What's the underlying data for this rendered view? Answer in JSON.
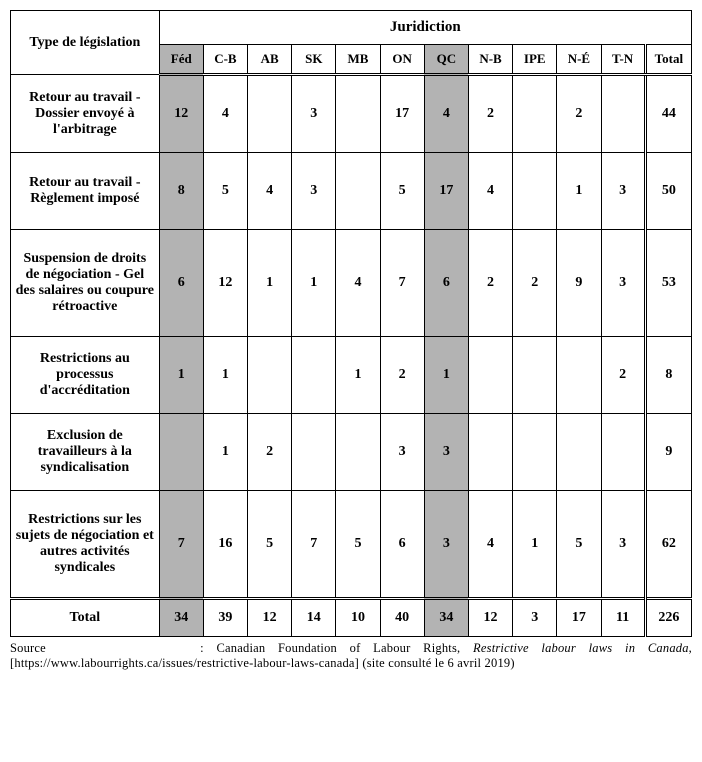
{
  "header": {
    "rowLabel": "Type de législation",
    "groupLabel": "Juridiction"
  },
  "columns": [
    "Féd",
    "C-B",
    "AB",
    "SK",
    "MB",
    "ON",
    "QC",
    "N-B",
    "IPE",
    "N-É",
    "T-N",
    "Total"
  ],
  "shadedColumns": [
    0,
    6
  ],
  "doubleLeftColumns": [
    11
  ],
  "rows": [
    {
      "label": "Retour au travail - Dossier envoyé à l'arbitrage",
      "values": [
        "12",
        "4",
        "",
        "3",
        "",
        "17",
        "4",
        "2",
        "",
        "2",
        "",
        "44"
      ],
      "tall": false
    },
    {
      "label": "Retour au travail - Règlement imposé",
      "values": [
        "8",
        "5",
        "4",
        "3",
        "",
        "5",
        "17",
        "4",
        "",
        "1",
        "3",
        "50"
      ],
      "tall": false
    },
    {
      "label": "Suspension de droits de négociation - Gel des salaires ou coupure rétroactive",
      "values": [
        "6",
        "12",
        "1",
        "1",
        "4",
        "7",
        "6",
        "2",
        "2",
        "9",
        "3",
        "53"
      ],
      "tall": true
    },
    {
      "label": "Restrictions au processus d'accréditation",
      "values": [
        "1",
        "1",
        "",
        "",
        "1",
        "2",
        "1",
        "",
        "",
        "",
        "2",
        "8"
      ],
      "tall": false
    },
    {
      "label": "Exclusion de travailleurs à la syndicalisation",
      "values": [
        "",
        "1",
        "2",
        "",
        "",
        "3",
        "3",
        "",
        "",
        "",
        "",
        "9"
      ],
      "tall": false
    },
    {
      "label": "Restrictions sur les sujets de négociation et autres activités syndicales",
      "values": [
        "7",
        "16",
        "5",
        "7",
        "5",
        "6",
        "3",
        "4",
        "1",
        "5",
        "3",
        "62"
      ],
      "tall": true
    }
  ],
  "totalRow": {
    "label": "Total",
    "values": [
      "34",
      "39",
      "12",
      "14",
      "10",
      "40",
      "34",
      "12",
      "3",
      "17",
      "11",
      "226"
    ]
  },
  "source": {
    "prefix": "Source : Canadian Foundation of Labour Rights, ",
    "italic": "Restrictive labour laws in Canada",
    "suffix": ", [https://www.labourrights.ca/issues/restrictive-labour-laws-canada] (site consulté le 6 avril 2019)"
  },
  "styling": {
    "tableWidth": 682,
    "rowLabelColWidth": 148,
    "dataColWidth": 44,
    "cellHeight": 68,
    "tallCellHeight": 98,
    "shadedColor": "#b3b3b3",
    "borderColor": "#000000",
    "background": "#ffffff",
    "fontFamily": "Times New Roman",
    "baseFontSize": 14,
    "headerFontSize": 15,
    "colHeadFontSize": 13,
    "sourceFontSize": 12.5
  }
}
